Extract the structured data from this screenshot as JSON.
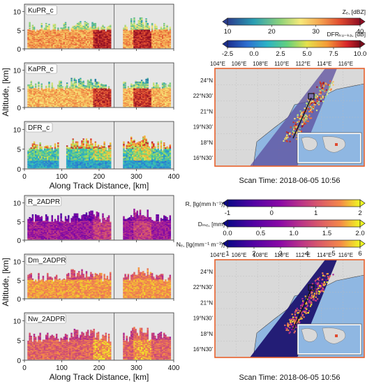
{
  "shared": {
    "ylabel": "Altitude, [km]",
    "xlabel": "Along Track Distance, [km]",
    "x_ticks": [
      0,
      100,
      200,
      300,
      400
    ],
    "y_ticks": [
      0,
      5,
      10
    ],
    "xlim": [
      0,
      400
    ],
    "ylim": [
      0,
      12
    ]
  },
  "colorbars": [
    {
      "label": "Zₑ, [dBZ]",
      "ticks": [
        "10",
        "20",
        "30",
        "40"
      ],
      "range": [
        10,
        40
      ],
      "cmap": "zcolors"
    },
    {
      "label": "DFRₖᵤ₋ₖₐ, [dB]",
      "ticks": [
        "-2.5",
        "0.0",
        "2.5",
        "5.0",
        "7.5",
        "10.0"
      ],
      "range": [
        -2.5,
        10
      ],
      "cmap": "dfrcolors"
    },
    {
      "label": "R, [lg(mm h⁻¹)]",
      "ticks": [
        "-1",
        "0",
        "1",
        "2"
      ],
      "range": [
        -1,
        2
      ],
      "cmap": "plasma"
    },
    {
      "label": "Dₘₑ, [mm]",
      "ticks": [
        "0.0",
        "0.5",
        "1.0",
        "1.5",
        "2.0"
      ],
      "range": [
        0,
        2
      ],
      "cmap": "plasma"
    },
    {
      "label": "Nₑ, [lg(mm⁻¹ m⁻³)]",
      "ticks": [
        "1",
        "2",
        "3",
        "4",
        "5",
        "6"
      ],
      "range": [
        1,
        6
      ],
      "cmap": "plasma"
    }
  ],
  "maps": {
    "lon_labels": [
      "104°E",
      "106°E",
      "108°E",
      "110°E",
      "112°E",
      "114°E",
      "116°E"
    ],
    "lat_labels": [
      "24°N",
      "22°N30'",
      "21°N",
      "19°N30'",
      "18°N",
      "16°N30'"
    ],
    "scan_time": "Scan Time: 2018-06-05 10:56"
  },
  "chart_data": [
    {
      "type": "heatmap",
      "title": "KuPR_c",
      "group": "top",
      "colormap": "zcolors",
      "cut_x": 240,
      "ylabel": "Altitude, [km]"
    },
    {
      "type": "heatmap",
      "title": "KaPR_c",
      "group": "top",
      "colormap": "zcolors",
      "cut_x": 240,
      "ylabel": "Altitude, [km]"
    },
    {
      "type": "heatmap",
      "title": "DFR_c",
      "group": "top",
      "colormap": "dfrcolors",
      "cut_x": 240,
      "xlabel": "Along Track Distance, [km]",
      "x_ticks": [
        0,
        100,
        200,
        300,
        400
      ],
      "ylabel": "Altitude, [km]"
    },
    {
      "type": "heatmap",
      "title": "R_2ADPR",
      "group": "bottom",
      "colormap": "plasma",
      "cut_x": 240,
      "ylabel": "Altitude, [km]"
    },
    {
      "type": "heatmap",
      "title": "Dm_2ADPR",
      "group": "bottom",
      "colormap": "plasma",
      "cut_x": 240,
      "ylabel": "Altitude, [km]"
    },
    {
      "type": "heatmap",
      "title": "Nw_2ADPR",
      "group": "bottom",
      "colormap": "plasma",
      "cut_x": 240,
      "xlabel": "Along Track Distance, [km]",
      "x_ticks": [
        0,
        100,
        200,
        300,
        400
      ],
      "ylabel": "Altitude, [km]"
    }
  ]
}
